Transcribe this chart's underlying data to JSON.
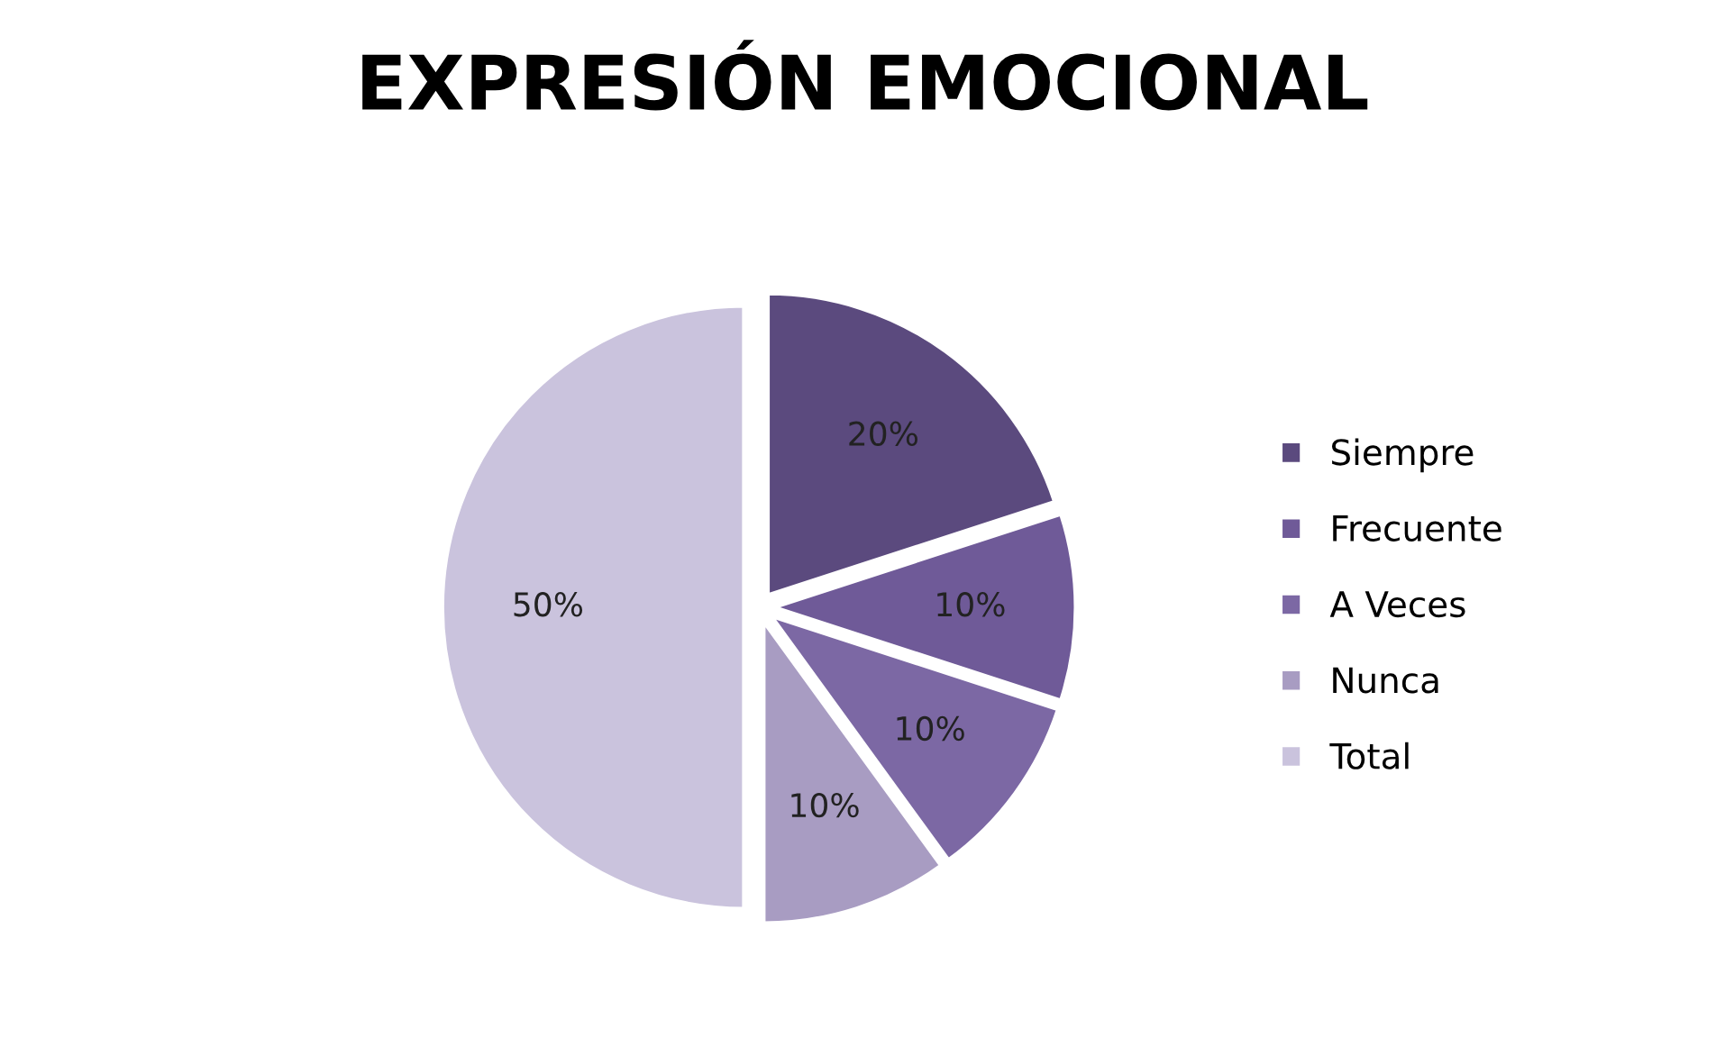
{
  "chart_data": {
    "type": "pie",
    "title": "EXPRESIÓN EMOCIONAL",
    "categories": [
      "Siempre",
      "Frecuente",
      "A Veces",
      "Nunca",
      "Total"
    ],
    "values": [
      20,
      10,
      10,
      10,
      50
    ],
    "colors": [
      "#5b4a7e",
      "#6f5a98",
      "#7c68a4",
      "#a89cc2",
      "#cac3dd"
    ],
    "value_labels": [
      "20%",
      "10%",
      "10%",
      "10%",
      "50%"
    ],
    "legend": "right"
  }
}
